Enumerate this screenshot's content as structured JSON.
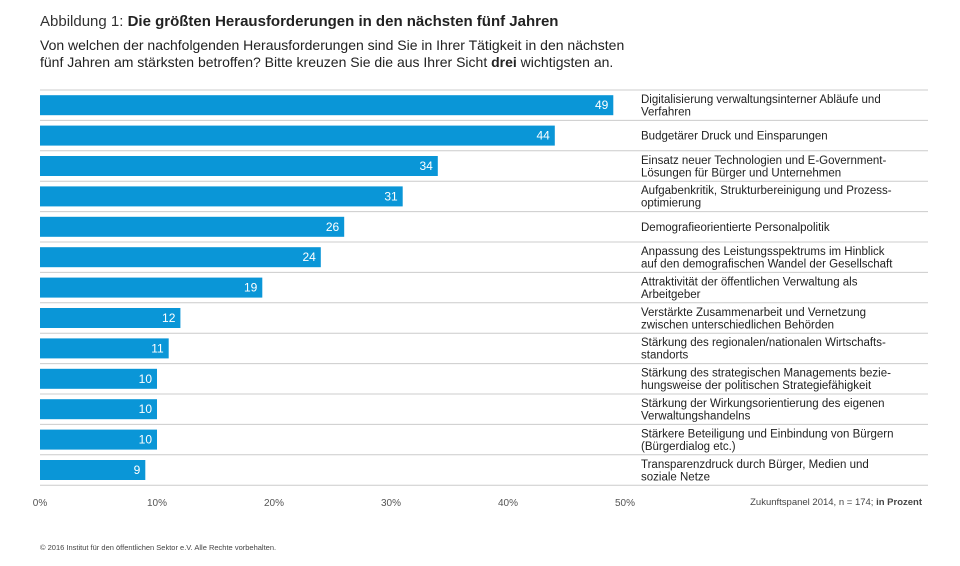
{
  "figure": {
    "label": "Abbildung 1:",
    "title": "Die größten Herausforderungen in den nächsten fünf Jahren",
    "question_part1": "Von welchen der nachfolgenden Herausforderungen sind Sie in Ihrer Tätigkeit in den nächsten fünf Jahren am stärksten betroffen? Bitte kreuzen Sie die aus Ihrer Sicht ",
    "question_bold": "drei",
    "question_part2": " wichtigsten an.",
    "source_note": "Zukunftspanel 2014, n = 174; ",
    "source_note_bold": "in Prozent",
    "copyright": "© 2016 Institut für den öffentlichen Sektor e.V. Alle Rechte vorbehalten."
  },
  "colors": {
    "bar": "#0a96d7",
    "grid": "#cccccc"
  },
  "chart_data": {
    "type": "bar",
    "orientation": "horizontal",
    "categories": [
      "Digitalisierung verwaltungsinterner Abläufe und\nVerfahren",
      "Budgetärer Druck und Einsparungen",
      "Einsatz neuer Technologien und E-Government-\nLösungen für Bürger und Unternehmen",
      "Aufgabenkritik, Strukturbereinigung und Prozess-\noptimierung",
      "Demografieorientierte Personalpolitik",
      "Anpassung des Leistungsspektrums im Hinblick\nauf den demografischen Wandel der Gesellschaft",
      "Attraktivität der öffentlichen Verwaltung als\nArbeitgeber",
      "Verstärkte Zusammenarbeit und Vernetzung\nzwischen unterschiedlichen Behörden",
      "Stärkung des regionalen/nationalen Wirtschafts-\nstandorts",
      "Stärkung des strategischen Managements bezie-\nhungsweise der politischen Strategiefähigkeit",
      "Stärkung der Wirkungsorientierung des eigenen\nVerwaltungshandelns",
      "Stärkere Beteiligung und Einbindung von Bürgern\n(Bürgerdialog etc.)",
      "Transparenzdruck durch Bürger, Medien und\nsoziale Netze"
    ],
    "values": [
      49,
      44,
      34,
      31,
      26,
      24,
      19,
      12,
      11,
      10,
      10,
      10,
      9
    ],
    "xlim": [
      0,
      50
    ],
    "xticks": [
      0,
      10,
      20,
      30,
      40,
      50
    ],
    "xtick_labels": [
      "0%",
      "10%",
      "20%",
      "30%",
      "40%",
      "50%"
    ],
    "grid": true
  }
}
